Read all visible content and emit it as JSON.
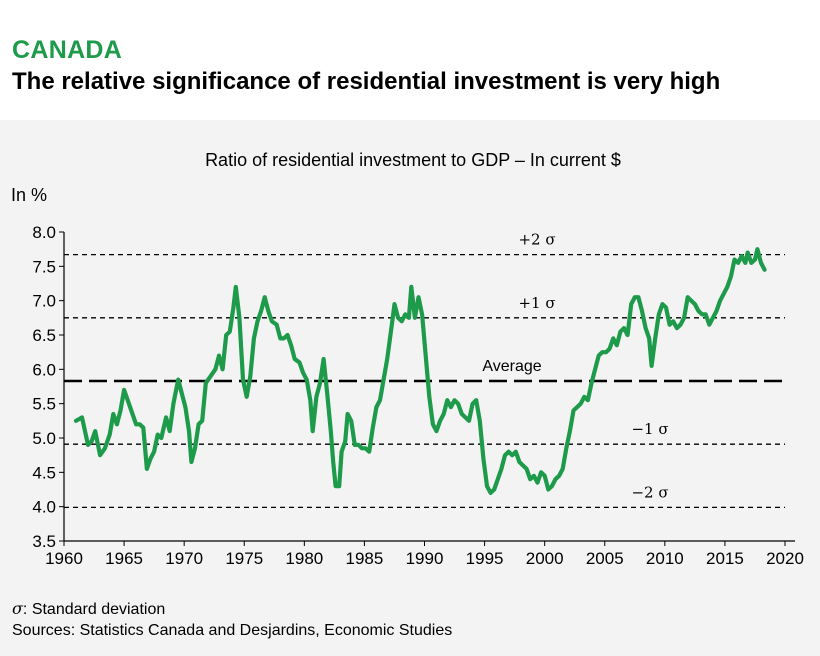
{
  "header": {
    "country": "CANADA",
    "headline": "The relative significance of residential investment is very high"
  },
  "footer": {
    "sigma_symbol": "σ",
    "sigma_note": ": Standard deviation",
    "sources": "Sources: Statistics Canada and Desjardins, Economic Studies"
  },
  "colors": {
    "series": "#1e9a4b",
    "accent": "#1e9a4b"
  },
  "chart_data": {
    "type": "line",
    "title": "Ratio of residential investment to GDP – In current $",
    "ylabel": "In %",
    "xlabel": "",
    "xlim": [
      1960,
      2020
    ],
    "ylim": [
      3.5,
      8.0
    ],
    "x_ticks": [
      "1960",
      "1965",
      "1970",
      "1975",
      "1980",
      "1985",
      "1990",
      "1995",
      "2000",
      "2005",
      "2010",
      "2015",
      "2020"
    ],
    "y_ticks": [
      "3.5",
      "4.0",
      "4.5",
      "5.0",
      "5.5",
      "6.0",
      "6.5",
      "7.0",
      "7.5",
      "8.0"
    ],
    "grid": false,
    "reference_lines": [
      {
        "label": "+2 σ",
        "value": 7.67,
        "style": "short-dash"
      },
      {
        "label": "+1 σ",
        "value": 6.75,
        "style": "short-dash"
      },
      {
        "label": "Average",
        "value": 5.83,
        "style": "long-dash"
      },
      {
        "label": "−1 σ",
        "value": 4.91,
        "style": "short-dash"
      },
      {
        "label": "−2 σ",
        "value": 3.99,
        "style": "short-dash"
      }
    ],
    "series": [
      {
        "color": "#1e9a4b",
        "points": [
          [
            1961.0,
            5.25
          ],
          [
            1961.5,
            5.3
          ],
          [
            1962.0,
            4.9
          ],
          [
            1962.3,
            4.95
          ],
          [
            1962.6,
            5.1
          ],
          [
            1963.0,
            4.75
          ],
          [
            1963.4,
            4.85
          ],
          [
            1963.8,
            5.05
          ],
          [
            1964.1,
            5.35
          ],
          [
            1964.4,
            5.2
          ],
          [
            1964.7,
            5.4
          ],
          [
            1965.0,
            5.7
          ],
          [
            1965.3,
            5.55
          ],
          [
            1965.7,
            5.35
          ],
          [
            1966.0,
            5.2
          ],
          [
            1966.3,
            5.2
          ],
          [
            1966.6,
            5.15
          ],
          [
            1966.9,
            4.55
          ],
          [
            1967.2,
            4.7
          ],
          [
            1967.5,
            4.8
          ],
          [
            1967.8,
            5.05
          ],
          [
            1968.1,
            5.0
          ],
          [
            1968.5,
            5.3
          ],
          [
            1968.8,
            5.1
          ],
          [
            1969.1,
            5.5
          ],
          [
            1969.5,
            5.85
          ],
          [
            1969.8,
            5.65
          ],
          [
            1970.1,
            5.45
          ],
          [
            1970.4,
            5.1
          ],
          [
            1970.6,
            4.65
          ],
          [
            1970.9,
            4.85
          ],
          [
            1971.2,
            5.2
          ],
          [
            1971.5,
            5.25
          ],
          [
            1971.8,
            5.8
          ],
          [
            1972.2,
            5.9
          ],
          [
            1972.6,
            6.0
          ],
          [
            1972.9,
            6.2
          ],
          [
            1973.2,
            6.0
          ],
          [
            1973.5,
            6.5
          ],
          [
            1973.8,
            6.55
          ],
          [
            1974.1,
            6.9
          ],
          [
            1974.3,
            7.2
          ],
          [
            1974.6,
            6.75
          ],
          [
            1974.9,
            5.85
          ],
          [
            1975.2,
            5.6
          ],
          [
            1975.5,
            5.9
          ],
          [
            1975.8,
            6.45
          ],
          [
            1976.1,
            6.7
          ],
          [
            1976.4,
            6.85
          ],
          [
            1976.7,
            7.05
          ],
          [
            1977.0,
            6.85
          ],
          [
            1977.3,
            6.7
          ],
          [
            1977.7,
            6.65
          ],
          [
            1978.0,
            6.45
          ],
          [
            1978.3,
            6.45
          ],
          [
            1978.6,
            6.5
          ],
          [
            1978.9,
            6.35
          ],
          [
            1979.2,
            6.15
          ],
          [
            1979.6,
            6.1
          ],
          [
            1979.9,
            5.95
          ],
          [
            1980.2,
            5.85
          ],
          [
            1980.5,
            5.55
          ],
          [
            1980.7,
            5.1
          ],
          [
            1981.0,
            5.6
          ],
          [
            1981.3,
            5.8
          ],
          [
            1981.6,
            6.15
          ],
          [
            1981.9,
            5.65
          ],
          [
            1982.2,
            5.1
          ],
          [
            1982.4,
            4.65
          ],
          [
            1982.6,
            4.3
          ],
          [
            1982.9,
            4.3
          ],
          [
            1983.1,
            4.8
          ],
          [
            1983.4,
            4.95
          ],
          [
            1983.6,
            5.35
          ],
          [
            1983.9,
            5.25
          ],
          [
            1984.2,
            4.9
          ],
          [
            1984.5,
            4.9
          ],
          [
            1984.8,
            4.85
          ],
          [
            1985.1,
            4.85
          ],
          [
            1985.4,
            4.8
          ],
          [
            1985.7,
            5.15
          ],
          [
            1986.0,
            5.45
          ],
          [
            1986.3,
            5.55
          ],
          [
            1986.6,
            5.85
          ],
          [
            1986.9,
            6.15
          ],
          [
            1987.2,
            6.55
          ],
          [
            1987.5,
            6.95
          ],
          [
            1987.8,
            6.75
          ],
          [
            1988.1,
            6.7
          ],
          [
            1988.4,
            6.8
          ],
          [
            1988.7,
            6.75
          ],
          [
            1988.9,
            7.2
          ],
          [
            1989.2,
            6.75
          ],
          [
            1989.5,
            7.05
          ],
          [
            1989.8,
            6.8
          ],
          [
            1990.1,
            6.2
          ],
          [
            1990.4,
            5.6
          ],
          [
            1990.7,
            5.2
          ],
          [
            1991.0,
            5.1
          ],
          [
            1991.3,
            5.25
          ],
          [
            1991.6,
            5.35
          ],
          [
            1991.9,
            5.55
          ],
          [
            1992.2,
            5.45
          ],
          [
            1992.5,
            5.55
          ],
          [
            1992.8,
            5.5
          ],
          [
            1993.1,
            5.35
          ],
          [
            1993.4,
            5.3
          ],
          [
            1993.7,
            5.25
          ],
          [
            1994.0,
            5.5
          ],
          [
            1994.3,
            5.55
          ],
          [
            1994.6,
            5.25
          ],
          [
            1994.9,
            4.7
          ],
          [
            1995.2,
            4.3
          ],
          [
            1995.5,
            4.2
          ],
          [
            1995.8,
            4.25
          ],
          [
            1996.1,
            4.4
          ],
          [
            1996.4,
            4.55
          ],
          [
            1996.7,
            4.75
          ],
          [
            1997.0,
            4.8
          ],
          [
            1997.3,
            4.75
          ],
          [
            1997.6,
            4.8
          ],
          [
            1997.9,
            4.65
          ],
          [
            1998.2,
            4.6
          ],
          [
            1998.5,
            4.55
          ],
          [
            1998.8,
            4.4
          ],
          [
            1999.1,
            4.45
          ],
          [
            1999.4,
            4.35
          ],
          [
            1999.7,
            4.5
          ],
          [
            2000.0,
            4.45
          ],
          [
            2000.3,
            4.25
          ],
          [
            2000.6,
            4.3
          ],
          [
            2000.9,
            4.4
          ],
          [
            2001.2,
            4.45
          ],
          [
            2001.5,
            4.55
          ],
          [
            2001.8,
            4.85
          ],
          [
            2002.1,
            5.1
          ],
          [
            2002.4,
            5.4
          ],
          [
            2002.7,
            5.45
          ],
          [
            2003.0,
            5.5
          ],
          [
            2003.3,
            5.6
          ],
          [
            2003.6,
            5.55
          ],
          [
            2003.9,
            5.8
          ],
          [
            2004.2,
            6.0
          ],
          [
            2004.5,
            6.2
          ],
          [
            2004.8,
            6.25
          ],
          [
            2005.1,
            6.25
          ],
          [
            2005.4,
            6.3
          ],
          [
            2005.7,
            6.45
          ],
          [
            2006.0,
            6.35
          ],
          [
            2006.3,
            6.55
          ],
          [
            2006.6,
            6.6
          ],
          [
            2006.9,
            6.5
          ],
          [
            2007.2,
            6.95
          ],
          [
            2007.5,
            7.05
          ],
          [
            2007.8,
            7.05
          ],
          [
            2008.1,
            6.85
          ],
          [
            2008.4,
            6.6
          ],
          [
            2008.7,
            6.45
          ],
          [
            2008.9,
            6.05
          ],
          [
            2009.2,
            6.45
          ],
          [
            2009.5,
            6.8
          ],
          [
            2009.8,
            6.95
          ],
          [
            2010.1,
            6.9
          ],
          [
            2010.4,
            6.65
          ],
          [
            2010.7,
            6.7
          ],
          [
            2011.0,
            6.6
          ],
          [
            2011.3,
            6.65
          ],
          [
            2011.6,
            6.75
          ],
          [
            2011.9,
            7.05
          ],
          [
            2012.2,
            7.0
          ],
          [
            2012.5,
            6.95
          ],
          [
            2012.8,
            6.85
          ],
          [
            2013.1,
            6.8
          ],
          [
            2013.4,
            6.8
          ],
          [
            2013.7,
            6.65
          ],
          [
            2014.0,
            6.75
          ],
          [
            2014.3,
            6.85
          ],
          [
            2014.6,
            7.0
          ],
          [
            2014.9,
            7.1
          ],
          [
            2015.2,
            7.2
          ],
          [
            2015.5,
            7.35
          ],
          [
            2015.8,
            7.6
          ],
          [
            2016.1,
            7.55
          ],
          [
            2016.4,
            7.65
          ],
          [
            2016.7,
            7.55
          ],
          [
            2016.9,
            7.7
          ],
          [
            2017.2,
            7.55
          ],
          [
            2017.5,
            7.6
          ],
          [
            2017.7,
            7.75
          ],
          [
            2018.0,
            7.55
          ],
          [
            2018.3,
            7.45
          ]
        ]
      }
    ]
  }
}
